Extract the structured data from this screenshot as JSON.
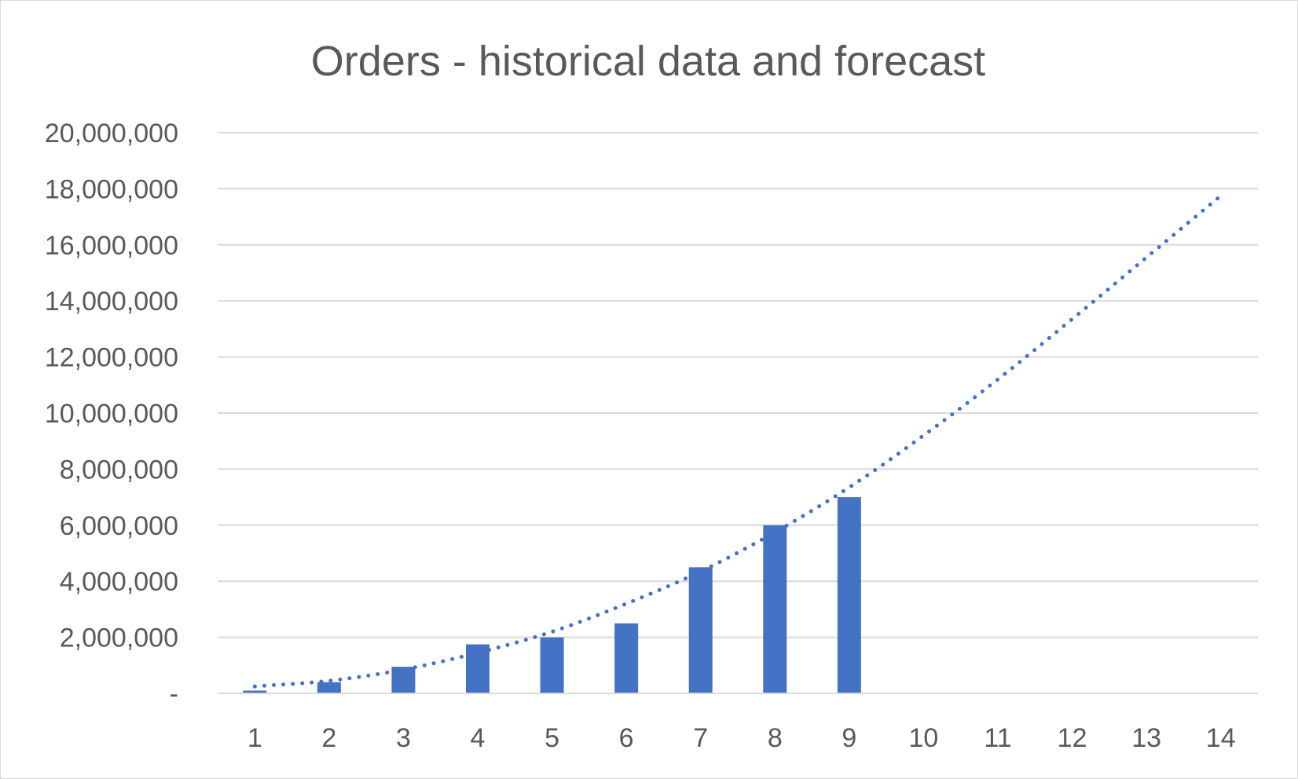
{
  "chart_data": {
    "type": "bar",
    "title": "Orders - historical data and forecast",
    "xlabel": "",
    "ylabel": "",
    "categories": [
      "1",
      "2",
      "3",
      "4",
      "5",
      "6",
      "7",
      "8",
      "9",
      "10",
      "11",
      "12",
      "13",
      "14"
    ],
    "series": [
      {
        "values": [
          100000,
          400000,
          950000,
          1750000,
          2000000,
          2500000,
          4500000,
          6000000,
          7000000,
          null,
          null,
          null,
          null,
          null
        ],
        "color": "#4472c4",
        "style": "bar"
      },
      {
        "values": [
          250000,
          450000,
          850000,
          1450000,
          2200000,
          3200000,
          4350000,
          5750000,
          7350000,
          9200000,
          11200000,
          13350000,
          15550000,
          17750000
        ],
        "color": "#4472c4",
        "style": "dotted-line",
        "trendline": "polynomial"
      }
    ],
    "ylim": [
      0,
      20000000
    ],
    "y_ticks": [
      0,
      2000000,
      4000000,
      6000000,
      8000000,
      10000000,
      12000000,
      14000000,
      16000000,
      18000000,
      20000000
    ],
    "y_tick_labels": [
      "-",
      "2,000,000",
      "4,000,000",
      "6,000,000",
      "8,000,000",
      "10,000,000",
      "12,000,000",
      "14,000,000",
      "16,000,000",
      "18,000,000",
      "20,000,000"
    ],
    "grid": true,
    "legend": "none"
  }
}
